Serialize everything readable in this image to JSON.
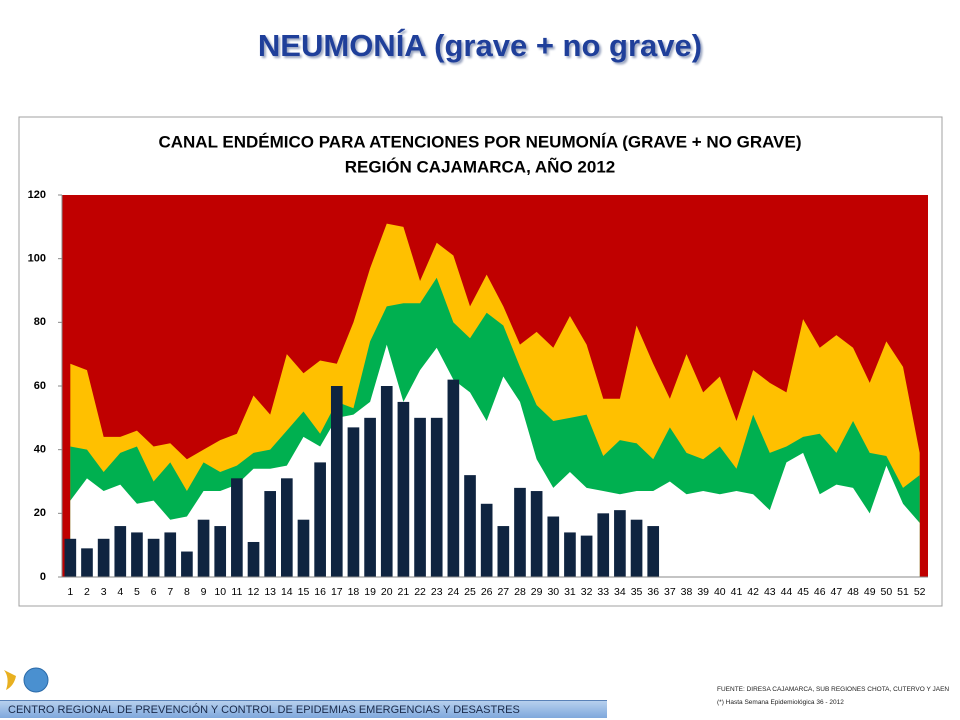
{
  "slide_title": "NEUMONÍA  (grave + no grave)",
  "chart_data": {
    "type": "combo",
    "title_lines": [
      "CANAL ENDÉMICO PARA ATENCIONES POR NEUMONÍA (GRAVE + NO GRAVE)",
      "REGIÓN CAJAMARCA, AÑO 2012"
    ],
    "categories": [
      "1",
      "2",
      "3",
      "4",
      "5",
      "6",
      "7",
      "8",
      "9",
      "10",
      "11",
      "12",
      "13",
      "14",
      "15",
      "16",
      "17",
      "18",
      "19",
      "20",
      "21",
      "22",
      "23",
      "24",
      "25",
      "26",
      "27",
      "28",
      "29",
      "30",
      "31",
      "32",
      "33",
      "34",
      "35",
      "36",
      "37",
      "38",
      "39",
      "40",
      "41",
      "42",
      "43",
      "44",
      "45",
      "46",
      "47",
      "48",
      "49",
      "50",
      "51",
      "52"
    ],
    "plot_color": "#c00000",
    "series": [
      {
        "kind": "area",
        "color": "#ffc000",
        "values": [
          67,
          65,
          44,
          44,
          46,
          41,
          42,
          37,
          40,
          43,
          45,
          57,
          51,
          70,
          64,
          68,
          67,
          80,
          97,
          111,
          110,
          93,
          105,
          101,
          85,
          95,
          85,
          73,
          77,
          72,
          82,
          73,
          56,
          56,
          79,
          67,
          56,
          70,
          58,
          63,
          49,
          65,
          61,
          58,
          81,
          72,
          76,
          72,
          61,
          74,
          66,
          39
        ]
      },
      {
        "kind": "area",
        "color": "#00b050",
        "values": [
          41,
          40,
          33,
          39,
          41,
          30,
          36,
          27,
          36,
          33,
          35,
          39,
          40,
          46,
          52,
          45,
          55,
          53,
          74,
          85,
          86,
          86,
          94,
          80,
          75,
          83,
          79,
          66,
          54,
          49,
          50,
          51,
          38,
          43,
          42,
          37,
          47,
          39,
          37,
          41,
          34,
          51,
          39,
          41,
          44,
          45,
          39,
          49,
          39,
          38,
          28,
          32
        ]
      },
      {
        "kind": "area",
        "color": "#ffffff",
        "values": [
          24,
          31,
          27,
          29,
          23,
          24,
          18,
          19,
          27,
          27,
          29,
          34,
          34,
          35,
          44,
          41,
          50,
          51,
          55,
          73,
          55,
          65,
          72,
          62,
          58,
          49,
          63,
          55,
          37,
          28,
          33,
          28,
          27,
          26,
          27,
          27,
          30,
          26,
          27,
          26,
          27,
          26,
          21,
          36,
          39,
          26,
          29,
          28,
          20,
          35,
          23,
          17
        ]
      },
      {
        "kind": "bar",
        "color": "#0f2440",
        "values": [
          12,
          9,
          12,
          16,
          14,
          12,
          14,
          8,
          18,
          16,
          31,
          11,
          27,
          31,
          18,
          36,
          60,
          47,
          50,
          60,
          55,
          50,
          50,
          62,
          32,
          23,
          16,
          28,
          27,
          19,
          14,
          13,
          20,
          21,
          18,
          16,
          null,
          null,
          null,
          null,
          null,
          null,
          null,
          null,
          null,
          null,
          null,
          null,
          null,
          null,
          null,
          null
        ]
      }
    ],
    "ylim": [
      0,
      120
    ],
    "yticks": [
      0,
      20,
      40,
      60,
      80,
      100,
      120
    ],
    "grid": false
  },
  "footer": {
    "organization": "CENTRO REGIONAL DE PREVENCIÓN Y CONTROL DE EPIDEMIAS EMERGENCIAS Y DESASTRES",
    "source": "FUENTE: DIRESA CAJAMARCA, SUB REGIONES CHOTA, CUTERVO Y JAEN",
    "note": "(*) Hasta Semana Epidemiológica 36 - 2012"
  }
}
